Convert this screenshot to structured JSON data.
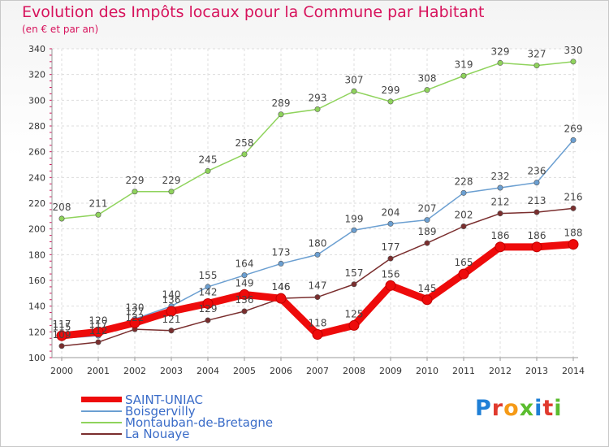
{
  "title": "Evolution des Impôts locaux pour la Commune par Habitant",
  "subtitle": "(en € et par an)",
  "brand": {
    "letters": [
      "P",
      "r",
      "o",
      "x",
      "i",
      "t",
      "i"
    ],
    "colors": [
      "#1f7fd6",
      "#e03a2e",
      "#f59a17",
      "#5bbd2f",
      "#1f7fd6",
      "#e03a2e",
      "#5bbd2f"
    ]
  },
  "chart_data": {
    "type": "line",
    "x": [
      "2000",
      "2001",
      "2002",
      "2003",
      "2004",
      "2005",
      "2006",
      "2007",
      "2008",
      "2009",
      "2010",
      "2011",
      "2012",
      "2013",
      "2014"
    ],
    "ylim": [
      100,
      340
    ],
    "yticks": [
      100,
      120,
      140,
      160,
      180,
      200,
      220,
      240,
      260,
      280,
      300,
      320,
      340
    ],
    "grid": true,
    "legend_position": "bottom-left",
    "series": [
      {
        "name": "Montauban-de-Bretagne",
        "color": "#8fd35c",
        "values": [
          208,
          211,
          229,
          229,
          245,
          258,
          289,
          293,
          307,
          299,
          308,
          319,
          329,
          327,
          330
        ]
      },
      {
        "name": "Boisgervilly",
        "color": "#6b9fd1",
        "values": [
          115,
          117,
          130,
          140,
          155,
          164,
          173,
          180,
          199,
          204,
          207,
          228,
          232,
          236,
          269
        ]
      },
      {
        "name": "La Nouaye",
        "color": "#7a2e2e",
        "values": [
          109,
          112,
          122,
          121,
          129,
          136,
          146,
          147,
          157,
          177,
          189,
          202,
          212,
          213,
          216
        ]
      },
      {
        "name": "SAINT-UNIAC",
        "color": "#ee0b0b",
        "values": [
          117,
          120,
          127,
          136,
          142,
          149,
          146,
          118,
          125,
          156,
          145,
          165,
          186,
          186,
          188
        ]
      }
    ],
    "legend": [
      {
        "name": "SAINT-UNIAC",
        "color": "#ee0b0b"
      },
      {
        "name": "Boisgervilly",
        "color": "#6b9fd1"
      },
      {
        "name": "Montauban-de-Bretagne",
        "color": "#8fd35c"
      },
      {
        "name": "La Nouaye",
        "color": "#7a2e2e"
      }
    ]
  }
}
